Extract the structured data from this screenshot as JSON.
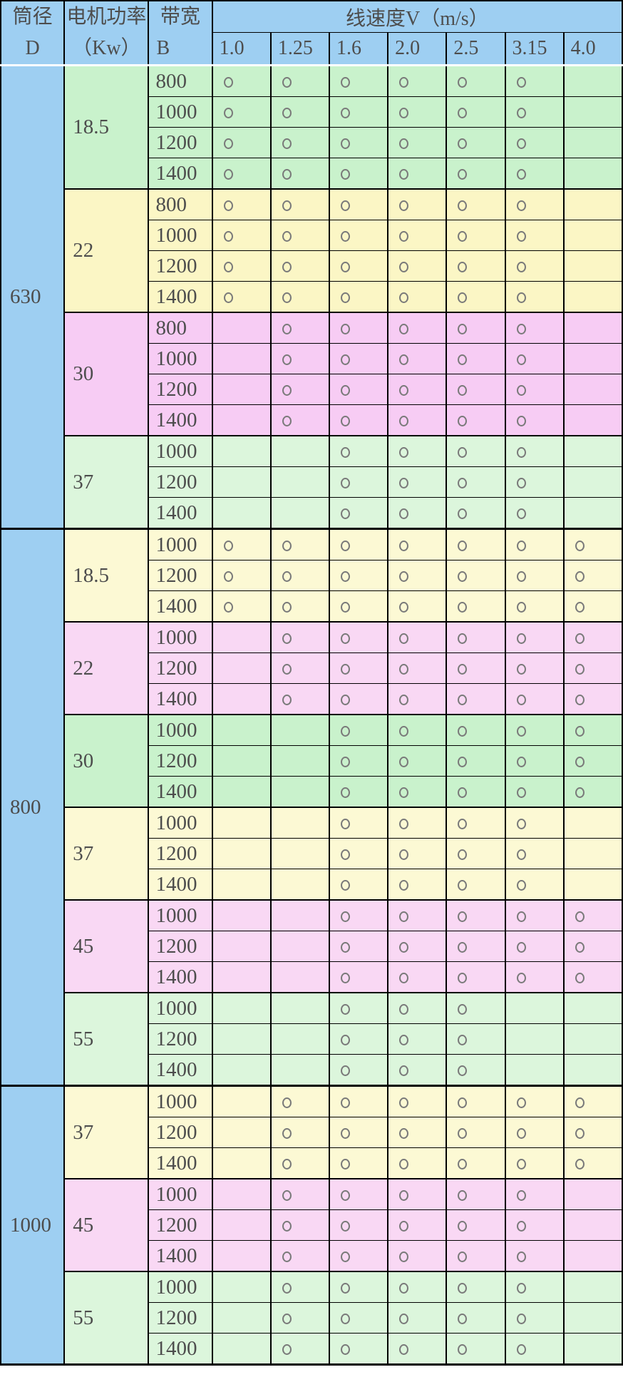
{
  "colors": {
    "header_blue": "#9ecff2",
    "grid_black": "#000000",
    "header_separator_white": "#ffffff",
    "text": "#4d4d4d",
    "circle": "#7a7a7a",
    "green_deep": "#c9f2cc",
    "green_pale": "#dcf6dc",
    "yellow_deep": "#fbf6c5",
    "yellow_pale": "#fcf9d4",
    "pink_deep": "#f7ccf4",
    "pink_pale": "#f9d8f4"
  },
  "header": {
    "col_diameter": {
      "line1": "筒径",
      "line2": "D"
    },
    "col_power": {
      "line1": "电机功率",
      "line2": "（Kw）"
    },
    "col_band": {
      "line1": "带宽",
      "line2": "B"
    },
    "speed_title": "线速度V（m/s）",
    "speeds": [
      "1.0",
      "1.25",
      "1.6",
      "2.0",
      "2.5",
      "3.15",
      "4.0"
    ]
  },
  "mark_symbol": "○",
  "table": {
    "blocks": [
      {
        "diameter": "630",
        "groups": [
          {
            "power": "18.5",
            "color": "green_deep",
            "rows": [
              {
                "b": "800",
                "marks": [
                  1,
                  1,
                  1,
                  1,
                  1,
                  1,
                  0
                ]
              },
              {
                "b": "1000",
                "marks": [
                  1,
                  1,
                  1,
                  1,
                  1,
                  1,
                  0
                ]
              },
              {
                "b": "1200",
                "marks": [
                  1,
                  1,
                  1,
                  1,
                  1,
                  1,
                  0
                ]
              },
              {
                "b": "1400",
                "marks": [
                  1,
                  1,
                  1,
                  1,
                  1,
                  1,
                  0
                ]
              }
            ]
          },
          {
            "power": "22",
            "color": "yellow_deep",
            "rows": [
              {
                "b": "800",
                "marks": [
                  1,
                  1,
                  1,
                  1,
                  1,
                  1,
                  0
                ]
              },
              {
                "b": "1000",
                "marks": [
                  1,
                  1,
                  1,
                  1,
                  1,
                  1,
                  0
                ]
              },
              {
                "b": "1200",
                "marks": [
                  1,
                  1,
                  1,
                  1,
                  1,
                  1,
                  0
                ]
              },
              {
                "b": "1400",
                "marks": [
                  1,
                  1,
                  1,
                  1,
                  1,
                  1,
                  0
                ]
              }
            ]
          },
          {
            "power": "30",
            "color": "pink_deep",
            "rows": [
              {
                "b": "800",
                "marks": [
                  0,
                  1,
                  1,
                  1,
                  1,
                  1,
                  0
                ]
              },
              {
                "b": "1000",
                "marks": [
                  0,
                  1,
                  1,
                  1,
                  1,
                  1,
                  0
                ]
              },
              {
                "b": "1200",
                "marks": [
                  0,
                  1,
                  1,
                  1,
                  1,
                  1,
                  0
                ]
              },
              {
                "b": "1400",
                "marks": [
                  0,
                  1,
                  1,
                  1,
                  1,
                  1,
                  0
                ]
              }
            ]
          },
          {
            "power": "37",
            "color": "green_pale",
            "rows": [
              {
                "b": "1000",
                "marks": [
                  0,
                  0,
                  1,
                  1,
                  1,
                  1,
                  0
                ]
              },
              {
                "b": "1200",
                "marks": [
                  0,
                  0,
                  1,
                  1,
                  1,
                  1,
                  0
                ]
              },
              {
                "b": "1400",
                "marks": [
                  0,
                  0,
                  1,
                  1,
                  1,
                  1,
                  0
                ]
              }
            ]
          }
        ]
      },
      {
        "diameter": "800",
        "groups": [
          {
            "power": "18.5",
            "color": "yellow_pale",
            "rows": [
              {
                "b": "1000",
                "marks": [
                  1,
                  1,
                  1,
                  1,
                  1,
                  1,
                  1
                ]
              },
              {
                "b": "1200",
                "marks": [
                  1,
                  1,
                  1,
                  1,
                  1,
                  1,
                  1
                ]
              },
              {
                "b": "1400",
                "marks": [
                  1,
                  1,
                  1,
                  1,
                  1,
                  1,
                  1
                ]
              }
            ]
          },
          {
            "power": "22",
            "color": "pink_pale",
            "rows": [
              {
                "b": "1000",
                "marks": [
                  0,
                  1,
                  1,
                  1,
                  1,
                  1,
                  1
                ]
              },
              {
                "b": "1200",
                "marks": [
                  0,
                  1,
                  1,
                  1,
                  1,
                  1,
                  1
                ]
              },
              {
                "b": "1400",
                "marks": [
                  0,
                  1,
                  1,
                  1,
                  1,
                  1,
                  1
                ]
              }
            ]
          },
          {
            "power": "30",
            "color": "green_deep",
            "rows": [
              {
                "b": "1000",
                "marks": [
                  0,
                  0,
                  1,
                  1,
                  1,
                  1,
                  1
                ]
              },
              {
                "b": "1200",
                "marks": [
                  0,
                  0,
                  1,
                  1,
                  1,
                  1,
                  1
                ]
              },
              {
                "b": "1400",
                "marks": [
                  0,
                  0,
                  1,
                  1,
                  1,
                  1,
                  1
                ]
              }
            ]
          },
          {
            "power": "37",
            "color": "yellow_pale",
            "rows": [
              {
                "b": "1000",
                "marks": [
                  0,
                  0,
                  1,
                  1,
                  1,
                  1,
                  0
                ]
              },
              {
                "b": "1200",
                "marks": [
                  0,
                  0,
                  1,
                  1,
                  1,
                  1,
                  0
                ]
              },
              {
                "b": "1400",
                "marks": [
                  0,
                  0,
                  1,
                  1,
                  1,
                  1,
                  0
                ]
              }
            ]
          },
          {
            "power": "45",
            "color": "pink_pale",
            "rows": [
              {
                "b": "1000",
                "marks": [
                  0,
                  0,
                  1,
                  1,
                  1,
                  1,
                  1
                ]
              },
              {
                "b": "1200",
                "marks": [
                  0,
                  0,
                  1,
                  1,
                  1,
                  1,
                  1
                ]
              },
              {
                "b": "1400",
                "marks": [
                  0,
                  0,
                  1,
                  1,
                  1,
                  1,
                  1
                ]
              }
            ]
          },
          {
            "power": "55",
            "color": "green_pale",
            "rows": [
              {
                "b": "1000",
                "marks": [
                  0,
                  0,
                  1,
                  1,
                  1,
                  0,
                  0
                ]
              },
              {
                "b": "1200",
                "marks": [
                  0,
                  0,
                  1,
                  1,
                  1,
                  0,
                  0
                ]
              },
              {
                "b": "1400",
                "marks": [
                  0,
                  0,
                  1,
                  1,
                  1,
                  0,
                  0
                ]
              }
            ]
          }
        ]
      },
      {
        "diameter": "1000",
        "groups": [
          {
            "power": "37",
            "color": "yellow_pale",
            "rows": [
              {
                "b": "1000",
                "marks": [
                  0,
                  1,
                  1,
                  1,
                  1,
                  1,
                  1
                ]
              },
              {
                "b": "1200",
                "marks": [
                  0,
                  1,
                  1,
                  1,
                  1,
                  1,
                  1
                ]
              },
              {
                "b": "1400",
                "marks": [
                  0,
                  1,
                  1,
                  1,
                  1,
                  1,
                  1
                ]
              }
            ]
          },
          {
            "power": "45",
            "color": "pink_pale",
            "rows": [
              {
                "b": "1000",
                "marks": [
                  0,
                  1,
                  1,
                  1,
                  1,
                  1,
                  0
                ]
              },
              {
                "b": "1200",
                "marks": [
                  0,
                  1,
                  1,
                  1,
                  1,
                  1,
                  0
                ]
              },
              {
                "b": "1400",
                "marks": [
                  0,
                  1,
                  1,
                  1,
                  1,
                  1,
                  0
                ]
              }
            ]
          },
          {
            "power": "55",
            "color": "green_pale",
            "rows": [
              {
                "b": "1000",
                "marks": [
                  0,
                  1,
                  1,
                  1,
                  1,
                  1,
                  0
                ]
              },
              {
                "b": "1200",
                "marks": [
                  0,
                  1,
                  1,
                  1,
                  1,
                  1,
                  0
                ]
              },
              {
                "b": "1400",
                "marks": [
                  0,
                  1,
                  1,
                  1,
                  1,
                  1,
                  0
                ]
              }
            ]
          }
        ]
      }
    ]
  }
}
